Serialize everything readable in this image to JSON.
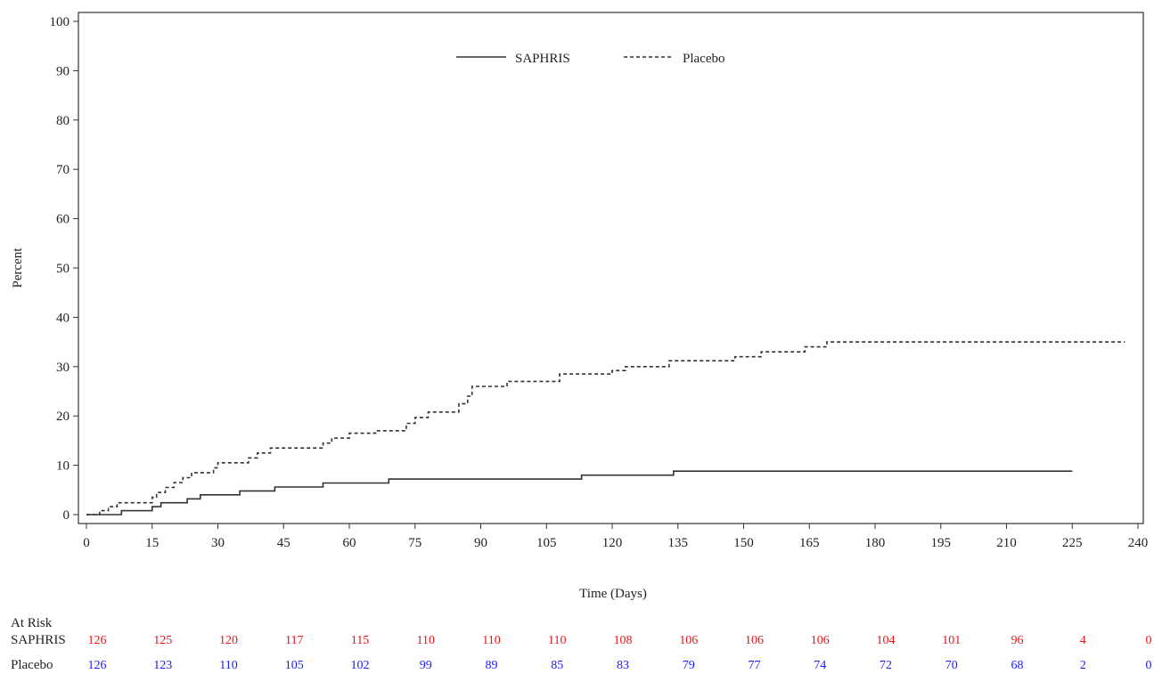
{
  "chart_data": {
    "type": "line",
    "xlabel": "Time (Days)",
    "ylabel": "Percent",
    "xlim": [
      0,
      240
    ],
    "ylim": [
      0,
      100
    ],
    "x_ticks": [
      0,
      15,
      30,
      45,
      60,
      75,
      90,
      105,
      120,
      135,
      150,
      165,
      180,
      195,
      210,
      225,
      240
    ],
    "y_ticks": [
      0,
      10,
      20,
      30,
      40,
      50,
      60,
      70,
      80,
      90,
      100
    ],
    "grid": false,
    "legend_position": "top-center",
    "series": [
      {
        "name": "SAPHRIS",
        "style": "solid",
        "color": "#333333",
        "step": true,
        "points": [
          [
            0,
            0
          ],
          [
            8,
            0.8
          ],
          [
            15,
            1.6
          ],
          [
            17,
            2.4
          ],
          [
            23,
            3.2
          ],
          [
            26,
            4.0
          ],
          [
            35,
            4.8
          ],
          [
            43,
            5.6
          ],
          [
            54,
            6.4
          ],
          [
            69,
            7.2
          ],
          [
            113,
            8.0
          ],
          [
            134,
            8.8
          ],
          [
            225,
            8.8
          ]
        ]
      },
      {
        "name": "Placebo",
        "style": "dashed",
        "color": "#333333",
        "step": true,
        "points": [
          [
            0,
            0
          ],
          [
            3,
            0.8
          ],
          [
            5,
            1.6
          ],
          [
            7,
            2.4
          ],
          [
            15,
            3.5
          ],
          [
            16,
            4.5
          ],
          [
            18,
            5.5
          ],
          [
            20,
            6.5
          ],
          [
            22,
            7.5
          ],
          [
            24,
            8.5
          ],
          [
            29,
            9.5
          ],
          [
            30,
            10.5
          ],
          [
            37,
            11.5
          ],
          [
            39,
            12.5
          ],
          [
            42,
            13.5
          ],
          [
            54,
            14.5
          ],
          [
            56,
            15.5
          ],
          [
            60,
            16.5
          ],
          [
            66,
            17.0
          ],
          [
            73,
            18.5
          ],
          [
            75,
            19.7
          ],
          [
            78,
            20.8
          ],
          [
            85,
            22.5
          ],
          [
            87,
            24.0
          ],
          [
            88,
            26.0
          ],
          [
            96,
            27.0
          ],
          [
            108,
            28.5
          ],
          [
            120,
            29.2
          ],
          [
            123,
            30.0
          ],
          [
            133,
            31.2
          ],
          [
            148,
            32.0
          ],
          [
            154,
            33.0
          ],
          [
            164,
            34.0
          ],
          [
            169,
            35.0
          ],
          [
            237,
            35.0
          ]
        ]
      }
    ],
    "at_risk": {
      "title": "At Risk",
      "rows": [
        {
          "name": "SAPHRIS",
          "color": "#e8161b",
          "values": [
            "126",
            "125",
            "120",
            "117",
            "115",
            "110",
            "110",
            "110",
            "108",
            "106",
            "106",
            "106",
            "104",
            "101",
            "96",
            "4",
            "0"
          ]
        },
        {
          "name": "Placebo",
          "color": "#1a1aff",
          "values": [
            "126",
            "123",
            "110",
            "105",
            "102",
            "99",
            "89",
            "85",
            "83",
            "79",
            "77",
            "74",
            "72",
            "70",
            "68",
            "2",
            "0"
          ]
        }
      ]
    }
  }
}
